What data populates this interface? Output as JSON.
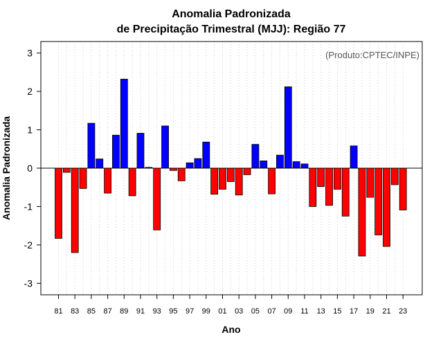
{
  "chart_data": {
    "type": "bar",
    "title": "Anomalia Padronizada",
    "subtitle": "de Precipitação Trimestral (MJJ): Região 77",
    "xlabel": "Ano",
    "ylabel": "Anomalia Padronizada",
    "credit": "(Produto:CPTEC/INPE)",
    "ylim": [
      -3.3,
      3.3
    ],
    "yticks": [
      -3,
      -2,
      -1,
      0,
      1,
      2,
      3
    ],
    "grid": "vertical dotted",
    "positive_color": "#0000ff",
    "negative_color": "#ff0000",
    "categories": [
      "1981",
      "1982",
      "1983",
      "1984",
      "1985",
      "1986",
      "1987",
      "1988",
      "1989",
      "1990",
      "1991",
      "1992",
      "1993",
      "1994",
      "1995",
      "1996",
      "1997",
      "1998",
      "1999",
      "2000",
      "2001",
      "2002",
      "2003",
      "2004",
      "2005",
      "2006",
      "2007",
      "2008",
      "2009",
      "2010",
      "2011",
      "2012",
      "2013",
      "2014",
      "2015",
      "2016",
      "2017",
      "2018",
      "2019",
      "2020",
      "2021",
      "2022",
      "2023"
    ],
    "tick_labels": [
      {
        "index": 0,
        "label": "81"
      },
      {
        "index": 2,
        "label": "83"
      },
      {
        "index": 4,
        "label": "85"
      },
      {
        "index": 6,
        "label": "87"
      },
      {
        "index": 8,
        "label": "89"
      },
      {
        "index": 10,
        "label": "91"
      },
      {
        "index": 12,
        "label": "93"
      },
      {
        "index": 14,
        "label": "95"
      },
      {
        "index": 16,
        "label": "97"
      },
      {
        "index": 18,
        "label": "99"
      },
      {
        "index": 20,
        "label": "01"
      },
      {
        "index": 22,
        "label": "03"
      },
      {
        "index": 24,
        "label": "05"
      },
      {
        "index": 26,
        "label": "07"
      },
      {
        "index": 28,
        "label": "09"
      },
      {
        "index": 30,
        "label": "11"
      },
      {
        "index": 32,
        "label": "13"
      },
      {
        "index": 34,
        "label": "15"
      },
      {
        "index": 36,
        "label": "17"
      },
      {
        "index": 38,
        "label": "19"
      },
      {
        "index": 40,
        "label": "21"
      },
      {
        "index": 42,
        "label": "23"
      }
    ],
    "values": [
      -1.83,
      -0.11,
      -2.2,
      -0.53,
      1.17,
      0.24,
      -0.65,
      0.86,
      2.32,
      -0.72,
      0.91,
      0.02,
      -1.61,
      1.1,
      -0.06,
      -0.33,
      0.14,
      0.25,
      0.68,
      -0.68,
      -0.55,
      -0.35,
      -0.7,
      -0.17,
      0.62,
      0.19,
      -0.67,
      0.34,
      2.12,
      0.17,
      0.11,
      -1.0,
      -0.48,
      -0.97,
      -0.55,
      -1.25,
      0.58,
      -2.29,
      -0.76,
      -1.74,
      -2.04,
      -0.43,
      -1.09
    ]
  }
}
